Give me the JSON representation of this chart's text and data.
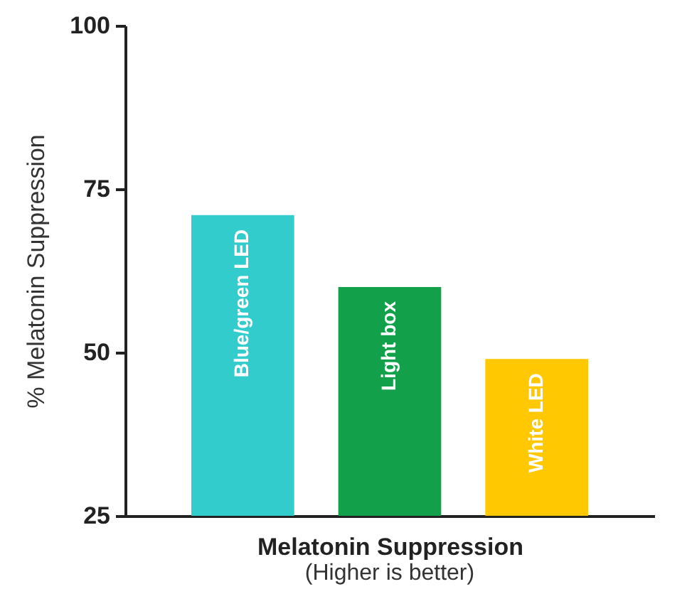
{
  "chart_data": {
    "type": "bar",
    "categories": [
      "Blue/green LED",
      "Light box",
      "White LED"
    ],
    "values": [
      71,
      60,
      49
    ],
    "colors": [
      "#33cccc",
      "#12a14a",
      "#ffc800"
    ],
    "ylim": [
      25,
      100
    ],
    "yticks": [
      25,
      50,
      75,
      100
    ],
    "ylabel": "% Melatonin  Suppression",
    "xlabel": "Melatonin Suppression",
    "annotations": [
      "(Higher is better)"
    ],
    "grid": false
  }
}
